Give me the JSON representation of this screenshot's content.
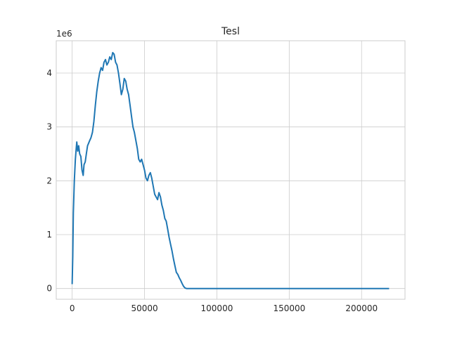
{
  "chart_data": {
    "type": "line",
    "title": "Tesl",
    "xlabel": "",
    "ylabel": "",
    "y_offset_label": "1e6",
    "xlim": [
      -11000,
      230000
    ],
    "ylim": [
      -200000,
      4600000
    ],
    "x_ticks": [
      0,
      50000,
      100000,
      150000,
      200000
    ],
    "x_tick_labels": [
      "0",
      "50000",
      "100000",
      "150000",
      "200000"
    ],
    "y_ticks": [
      0,
      1000000,
      2000000,
      3000000,
      4000000
    ],
    "y_tick_labels": [
      "0",
      "1",
      "2",
      "3",
      "4"
    ],
    "grid": true,
    "style": "whitegrid",
    "series": [
      {
        "color": "#1f77b4",
        "x": [
          0,
          400,
          800,
          1500,
          2200,
          2800,
          3200,
          3800,
          4500,
          5200,
          6000,
          6800,
          7600,
          8200,
          9000,
          9800,
          10600,
          11400,
          12200,
          13000,
          14000,
          15000,
          16000,
          17000,
          18000,
          19000,
          20000,
          21000,
          22000,
          23000,
          24000,
          25000,
          26000,
          27000,
          28000,
          29000,
          30000,
          31000,
          32000,
          33000,
          34000,
          35000,
          36000,
          37000,
          38000,
          39000,
          40000,
          41000,
          42000,
          43000,
          44000,
          45000,
          46000,
          47000,
          48000,
          49000,
          50000,
          51000,
          52000,
          53000,
          54000,
          55000,
          56000,
          57000,
          58000,
          59000,
          60000,
          61000,
          62000,
          63000,
          64000,
          65000,
          66000,
          67000,
          68000,
          69000,
          70000,
          71000,
          72000,
          73000,
          74000,
          75000,
          76000,
          77000,
          78000,
          79000,
          80000,
          81000,
          82000,
          83000,
          84000,
          90000,
          120000,
          160000,
          200000,
          219000
        ],
        "y": [
          80000,
          600000,
          1400000,
          2000000,
          2400000,
          2600000,
          2720000,
          2550000,
          2650000,
          2500000,
          2450000,
          2200000,
          2100000,
          2300000,
          2350000,
          2500000,
          2650000,
          2700000,
          2750000,
          2800000,
          2900000,
          3100000,
          3400000,
          3650000,
          3850000,
          4000000,
          4100000,
          4050000,
          4200000,
          4250000,
          4150000,
          4200000,
          4300000,
          4250000,
          4380000,
          4350000,
          4200000,
          4150000,
          4000000,
          3800000,
          3600000,
          3700000,
          3900000,
          3850000,
          3700000,
          3600000,
          3400000,
          3200000,
          3000000,
          2900000,
          2750000,
          2600000,
          2400000,
          2350000,
          2400000,
          2300000,
          2200000,
          2050000,
          2000000,
          2100000,
          2150000,
          2050000,
          1900000,
          1750000,
          1700000,
          1650000,
          1780000,
          1700000,
          1550000,
          1450000,
          1300000,
          1250000,
          1100000,
          950000,
          820000,
          700000,
          550000,
          420000,
          300000,
          260000,
          200000,
          150000,
          90000,
          40000,
          10000,
          0,
          0,
          0,
          0,
          0,
          0,
          0,
          0,
          0,
          0,
          0
        ]
      }
    ]
  }
}
